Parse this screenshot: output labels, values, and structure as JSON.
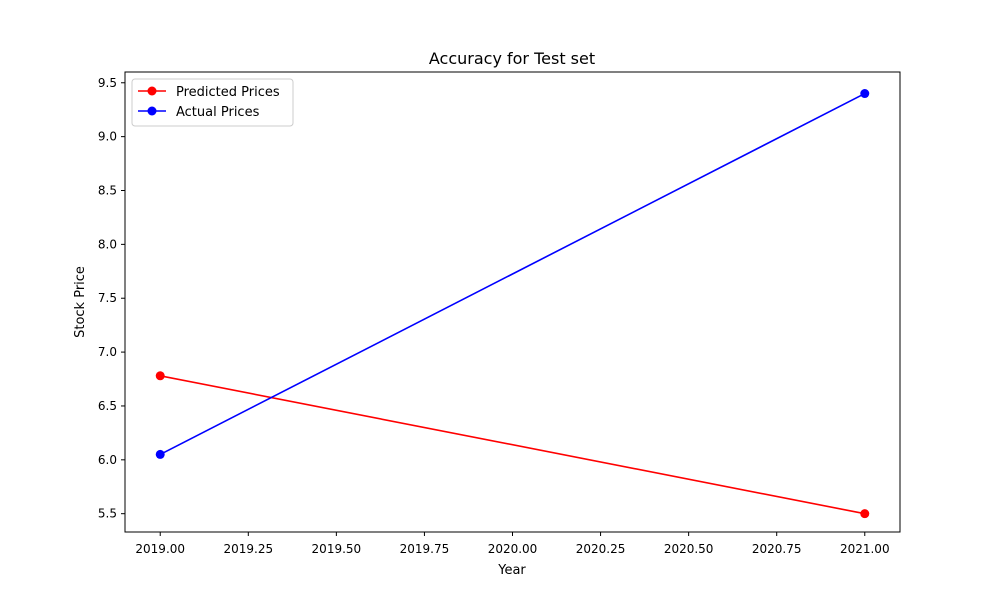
{
  "chart_data": {
    "type": "line",
    "title": "Accuracy for Test set",
    "xlabel": "Year",
    "ylabel": "Stock Price",
    "xlim": [
      2018.9,
      2021.1
    ],
    "ylim": [
      5.33,
      9.6
    ],
    "xticks": [
      2019.0,
      2019.25,
      2019.5,
      2019.75,
      2020.0,
      2020.25,
      2020.5,
      2020.75,
      2021.0
    ],
    "xtick_labels": [
      "2019.00",
      "2019.25",
      "2019.50",
      "2019.75",
      "2020.00",
      "2020.25",
      "2020.50",
      "2020.75",
      "2021.00"
    ],
    "yticks": [
      5.5,
      6.0,
      6.5,
      7.0,
      7.5,
      8.0,
      8.5,
      9.0,
      9.5
    ],
    "ytick_labels": [
      "5.5",
      "6.0",
      "6.5",
      "7.0",
      "7.5",
      "8.0",
      "8.5",
      "9.0",
      "9.5"
    ],
    "grid": false,
    "legend_position": "top-left",
    "series": [
      {
        "name": "Predicted Prices",
        "color": "#ff0000",
        "x": [
          2019,
          2021
        ],
        "y": [
          6.78,
          5.5
        ]
      },
      {
        "name": "Actual Prices",
        "color": "#0000ff",
        "x": [
          2019,
          2021
        ],
        "y": [
          6.05,
          9.4
        ]
      }
    ]
  }
}
